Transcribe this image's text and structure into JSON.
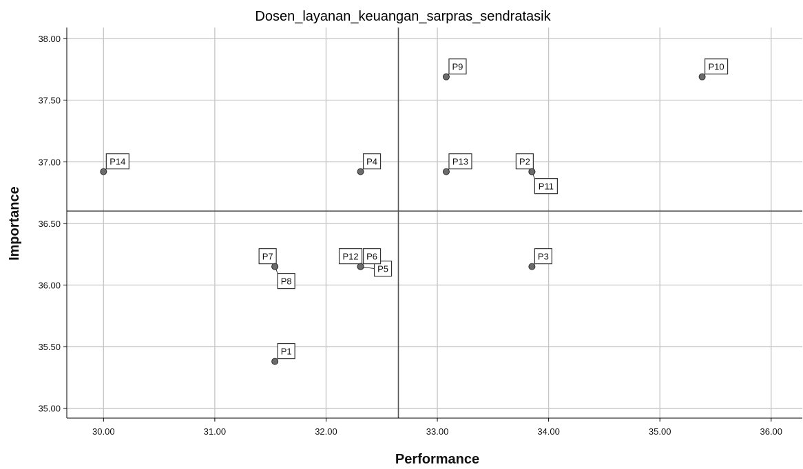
{
  "chart_data": {
    "type": "scatter",
    "title": "Dosen_layanan_keuangan_sarpras_sendratasik",
    "xlabel": "Performance",
    "ylabel": "Importance",
    "xlim": [
      29.67,
      36.28
    ],
    "ylim": [
      34.92,
      38.09
    ],
    "xticks": [
      "30.00",
      "31.00",
      "32.00",
      "33.00",
      "34.00",
      "35.00",
      "36.00"
    ],
    "yticks": [
      "35.00",
      "35.50",
      "36.00",
      "36.50",
      "37.00",
      "37.50",
      "38.00"
    ],
    "grid": true,
    "reference_lines": {
      "x": 32.65,
      "y": 36.6
    },
    "points": [
      {
        "label": "P1",
        "x": 31.54,
        "y": 35.38,
        "label_pos": "upper-right"
      },
      {
        "label": "P2",
        "x": 33.85,
        "y": 36.92,
        "label_pos": "upper-left"
      },
      {
        "label": "P3",
        "x": 33.85,
        "y": 36.15,
        "label_pos": "upper-right"
      },
      {
        "label": "P4",
        "x": 32.31,
        "y": 36.92,
        "label_pos": "upper-right"
      },
      {
        "label": "P5",
        "x": 32.31,
        "y": 36.15,
        "label_pos": "right"
      },
      {
        "label": "P6",
        "x": 32.31,
        "y": 36.15,
        "label_pos": "upper-right"
      },
      {
        "label": "P7",
        "x": 31.54,
        "y": 36.15,
        "label_pos": "upper-left"
      },
      {
        "label": "P8",
        "x": 31.54,
        "y": 36.15,
        "label_pos": "lower-right"
      },
      {
        "label": "P9",
        "x": 33.08,
        "y": 37.69,
        "label_pos": "upper-right"
      },
      {
        "label": "P10",
        "x": 35.38,
        "y": 37.69,
        "label_pos": "upper-right"
      },
      {
        "label": "P11",
        "x": 33.85,
        "y": 36.92,
        "label_pos": "lower-right"
      },
      {
        "label": "P12",
        "x": 32.31,
        "y": 36.15,
        "label_pos": "upper-left"
      },
      {
        "label": "P13",
        "x": 33.08,
        "y": 36.92,
        "label_pos": "upper-right"
      },
      {
        "label": "P14",
        "x": 30.0,
        "y": 36.92,
        "label_pos": "upper-right"
      }
    ],
    "colors": {
      "point_fill": "#6b6b6b",
      "point_stroke": "#2a2a2a",
      "grid": "#c4c4c4",
      "reference_line": "#555555",
      "axis": "#000000",
      "label_box_fill": "#ffffff",
      "label_box_stroke": "#333333"
    }
  }
}
